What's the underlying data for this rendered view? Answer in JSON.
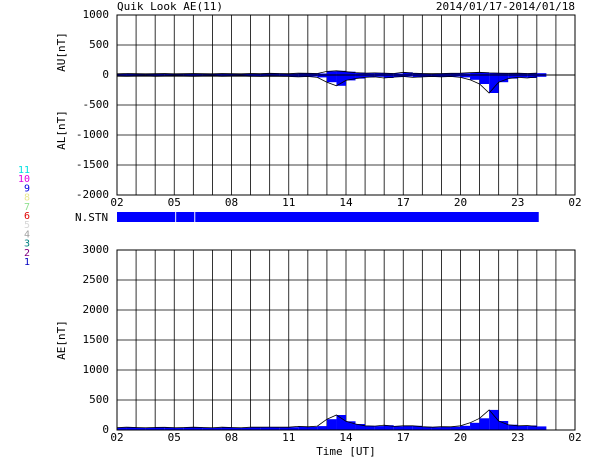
{
  "chart_data": {
    "type": "geomag",
    "title": "Quik Look AE(11)",
    "date_range": "2014/01/17-2014/01/18",
    "x_label": "Time [UT]",
    "x": [
      0,
      0.5,
      1,
      1.5,
      2,
      2.5,
      3,
      3.5,
      4,
      4.5,
      5,
      5.5,
      6,
      6.5,
      7,
      7.5,
      8,
      8.5,
      9,
      9.5,
      10,
      10.5,
      11,
      11.5,
      12,
      12.5,
      13,
      13.5,
      14,
      14.5,
      15,
      15.5,
      16,
      16.5,
      17,
      17.5,
      18,
      18.5,
      19,
      19.5,
      20,
      20.5,
      21,
      21.5,
      22
    ],
    "xlim": [
      0,
      24
    ],
    "xticks": [
      {
        "value": 0,
        "label": "02"
      },
      {
        "value": 3,
        "label": "05"
      },
      {
        "value": 6,
        "label": "08"
      },
      {
        "value": 9,
        "label": "11"
      },
      {
        "value": 12,
        "label": "14"
      },
      {
        "value": 15,
        "label": "17"
      },
      {
        "value": 18,
        "label": "20"
      },
      {
        "value": 21,
        "label": "23"
      },
      {
        "value": 24,
        "label": "02"
      }
    ],
    "xgrid": [
      1,
      2,
      4,
      5,
      7,
      8,
      10,
      11,
      13,
      14,
      16,
      17,
      19,
      20,
      22,
      23
    ],
    "upper_panel": {
      "y_label_top": "AU[nT]",
      "y_label_bottom": "AL[nT]",
      "ylim": [
        -2000,
        1000
      ],
      "yticks": [
        -2000,
        -1500,
        -1000,
        -500,
        0,
        500,
        1000
      ],
      "series": [
        {
          "name": "AU",
          "color": "#0000ff",
          "values": [
            20,
            25,
            22,
            20,
            22,
            25,
            20,
            22,
            25,
            22,
            20,
            25,
            22,
            20,
            25,
            22,
            28,
            25,
            22,
            30,
            28,
            25,
            60,
            70,
            55,
            40,
            30,
            35,
            30,
            25,
            45,
            30,
            25,
            22,
            25,
            28,
            30,
            40,
            45,
            35,
            30,
            28,
            30,
            25,
            30
          ]
        },
        {
          "name": "AL",
          "color": "#0000ff",
          "values": [
            -20,
            -22,
            -20,
            -18,
            -22,
            -20,
            -18,
            -20,
            -22,
            -20,
            -18,
            -22,
            -20,
            -18,
            -22,
            -25,
            -20,
            -22,
            -25,
            -30,
            -25,
            -40,
            -120,
            -180,
            -90,
            -60,
            -40,
            -30,
            -50,
            -35,
            -25,
            -40,
            -30,
            -25,
            -30,
            -25,
            -40,
            -80,
            -150,
            -300,
            -120,
            -60,
            -40,
            -50,
            -30
          ]
        }
      ]
    },
    "n_stn": {
      "label": "N.STN",
      "color": "#0000ff",
      "segments": [
        [
          0,
          3.05
        ],
        [
          3.1,
          4.05
        ],
        [
          4.1,
          22.1
        ]
      ]
    },
    "stations": [
      {
        "label": "11",
        "color": "#00e0e0"
      },
      {
        "label": "10",
        "color": "#e000e0"
      },
      {
        "label": "9",
        "color": "#0000e0"
      },
      {
        "label": "8",
        "color": "#e8e890"
      },
      {
        "label": "7",
        "color": "#90e090"
      },
      {
        "label": "6",
        "color": "#e00000"
      },
      {
        "label": "5",
        "color": "#d8d8d8"
      },
      {
        "label": "4",
        "color": "#a0a0a0"
      },
      {
        "label": "3",
        "color": "#008080"
      },
      {
        "label": "2",
        "color": "#800080"
      },
      {
        "label": "1",
        "color": "#0000c0"
      }
    ],
    "lower_panel": {
      "y_label": "AE[nT]",
      "ylim": [
        0,
        3000
      ],
      "yticks": [
        0,
        500,
        1000,
        1500,
        2000,
        2500,
        3000
      ],
      "series": [
        {
          "name": "AE",
          "color": "#0000ff",
          "values": [
            40,
            47,
            42,
            38,
            44,
            45,
            38,
            42,
            47,
            42,
            38,
            47,
            42,
            38,
            47,
            47,
            48,
            47,
            47,
            60,
            53,
            65,
            180,
            250,
            145,
            100,
            70,
            65,
            80,
            60,
            70,
            70,
            55,
            47,
            55,
            53,
            70,
            120,
            195,
            335,
            150,
            88,
            70,
            75,
            60
          ]
        }
      ]
    }
  }
}
